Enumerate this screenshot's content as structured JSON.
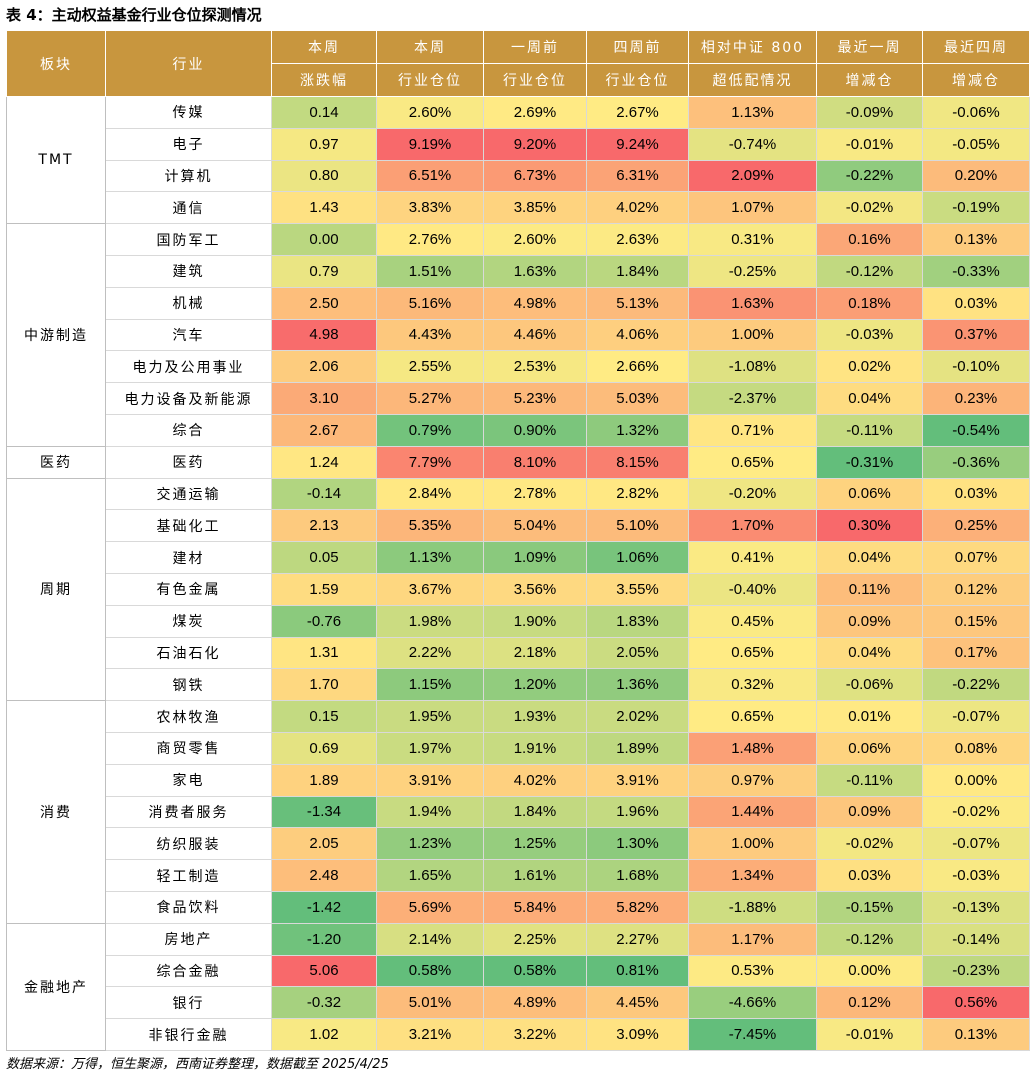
{
  "title": "表 4：主动权益基金行业仓位探测情况",
  "footer": "数据来源：万得，恒生聚源，西南证券整理，数据截至 2025/4/25",
  "headers": [
    [
      "板块"
    ],
    [
      "行业"
    ],
    [
      "本周",
      "涨跌幅"
    ],
    [
      "本周",
      "行业仓位"
    ],
    [
      "一周前",
      "行业仓位"
    ],
    [
      "四周前",
      "行业仓位"
    ],
    [
      "相对中证 800",
      "超低配情况"
    ],
    [
      "最近一周",
      "增减仓"
    ],
    [
      "最近四周",
      "增减仓"
    ]
  ],
  "sectors": [
    {
      "name": "TMT",
      "rows": [
        {
          "industry": "传媒",
          "values": [
            "0.14",
            "2.60%",
            "2.69%",
            "2.67%",
            "1.13%",
            "-0.09%",
            "-0.06%"
          ]
        },
        {
          "industry": "电子",
          "values": [
            "0.97",
            "9.19%",
            "9.20%",
            "9.24%",
            "-0.74%",
            "-0.01%",
            "-0.05%"
          ]
        },
        {
          "industry": "计算机",
          "values": [
            "0.80",
            "6.51%",
            "6.73%",
            "6.31%",
            "2.09%",
            "-0.22%",
            "0.20%"
          ]
        },
        {
          "industry": "通信",
          "values": [
            "1.43",
            "3.83%",
            "3.85%",
            "4.02%",
            "1.07%",
            "-0.02%",
            "-0.19%"
          ]
        }
      ]
    },
    {
      "name": "中游制造",
      "rows": [
        {
          "industry": "国防军工",
          "values": [
            "0.00",
            "2.76%",
            "2.60%",
            "2.63%",
            "0.31%",
            "0.16%",
            "0.13%"
          ]
        },
        {
          "industry": "建筑",
          "values": [
            "0.79",
            "1.51%",
            "1.63%",
            "1.84%",
            "-0.25%",
            "-0.12%",
            "-0.33%"
          ]
        },
        {
          "industry": "机械",
          "values": [
            "2.50",
            "5.16%",
            "4.98%",
            "5.13%",
            "1.63%",
            "0.18%",
            "0.03%"
          ]
        },
        {
          "industry": "汽车",
          "values": [
            "4.98",
            "4.43%",
            "4.46%",
            "4.06%",
            "1.00%",
            "-0.03%",
            "0.37%"
          ]
        },
        {
          "industry": "电力及公用事业",
          "values": [
            "2.06",
            "2.55%",
            "2.53%",
            "2.66%",
            "-1.08%",
            "0.02%",
            "-0.10%"
          ]
        },
        {
          "industry": "电力设备及新能源",
          "values": [
            "3.10",
            "5.27%",
            "5.23%",
            "5.03%",
            "-2.37%",
            "0.04%",
            "0.23%"
          ]
        },
        {
          "industry": "综合",
          "values": [
            "2.67",
            "0.79%",
            "0.90%",
            "1.32%",
            "0.71%",
            "-0.11%",
            "-0.54%"
          ]
        }
      ]
    },
    {
      "name": "医药",
      "rows": [
        {
          "industry": "医药",
          "values": [
            "1.24",
            "7.79%",
            "8.10%",
            "8.15%",
            "0.65%",
            "-0.31%",
            "-0.36%"
          ]
        }
      ]
    },
    {
      "name": "周期",
      "rows": [
        {
          "industry": "交通运输",
          "values": [
            "-0.14",
            "2.84%",
            "2.78%",
            "2.82%",
            "-0.20%",
            "0.06%",
            "0.03%"
          ]
        },
        {
          "industry": "基础化工",
          "values": [
            "2.13",
            "5.35%",
            "5.04%",
            "5.10%",
            "1.70%",
            "0.30%",
            "0.25%"
          ]
        },
        {
          "industry": "建材",
          "values": [
            "0.05",
            "1.13%",
            "1.09%",
            "1.06%",
            "0.41%",
            "0.04%",
            "0.07%"
          ]
        },
        {
          "industry": "有色金属",
          "values": [
            "1.59",
            "3.67%",
            "3.56%",
            "3.55%",
            "-0.40%",
            "0.11%",
            "0.12%"
          ]
        },
        {
          "industry": "煤炭",
          "values": [
            "-0.76",
            "1.98%",
            "1.90%",
            "1.83%",
            "0.45%",
            "0.09%",
            "0.15%"
          ]
        },
        {
          "industry": "石油石化",
          "values": [
            "1.31",
            "2.22%",
            "2.18%",
            "2.05%",
            "0.65%",
            "0.04%",
            "0.17%"
          ]
        },
        {
          "industry": "钢铁",
          "values": [
            "1.70",
            "1.15%",
            "1.20%",
            "1.36%",
            "0.32%",
            "-0.06%",
            "-0.22%"
          ]
        }
      ]
    },
    {
      "name": "消费",
      "rows": [
        {
          "industry": "农林牧渔",
          "values": [
            "0.15",
            "1.95%",
            "1.93%",
            "2.02%",
            "0.65%",
            "0.01%",
            "-0.07%"
          ]
        },
        {
          "industry": "商贸零售",
          "values": [
            "0.69",
            "1.97%",
            "1.91%",
            "1.89%",
            "1.48%",
            "0.06%",
            "0.08%"
          ]
        },
        {
          "industry": "家电",
          "values": [
            "1.89",
            "3.91%",
            "4.02%",
            "3.91%",
            "0.97%",
            "-0.11%",
            "0.00%"
          ]
        },
        {
          "industry": "消费者服务",
          "values": [
            "-1.34",
            "1.94%",
            "1.84%",
            "1.96%",
            "1.44%",
            "0.09%",
            "-0.02%"
          ]
        },
        {
          "industry": "纺织服装",
          "values": [
            "2.05",
            "1.23%",
            "1.25%",
            "1.30%",
            "1.00%",
            "-0.02%",
            "-0.07%"
          ]
        },
        {
          "industry": "轻工制造",
          "values": [
            "2.48",
            "1.65%",
            "1.61%",
            "1.68%",
            "1.34%",
            "0.03%",
            "-0.03%"
          ]
        },
        {
          "industry": "食品饮料",
          "values": [
            "-1.42",
            "5.69%",
            "5.84%",
            "5.82%",
            "-1.88%",
            "-0.15%",
            "-0.13%"
          ]
        }
      ]
    },
    {
      "name": "金融地产",
      "rows": [
        {
          "industry": "房地产",
          "values": [
            "-1.20",
            "2.14%",
            "2.25%",
            "2.27%",
            "1.17%",
            "-0.12%",
            "-0.14%"
          ]
        },
        {
          "industry": "综合金融",
          "values": [
            "5.06",
            "0.58%",
            "0.58%",
            "0.81%",
            "0.53%",
            "0.00%",
            "-0.23%"
          ]
        },
        {
          "industry": "银行",
          "values": [
            "-0.32",
            "5.01%",
            "4.89%",
            "4.45%",
            "-4.66%",
            "0.12%",
            "0.56%"
          ]
        },
        {
          "industry": "非银行金融",
          "values": [
            "1.02",
            "3.21%",
            "3.22%",
            "3.09%",
            "-7.45%",
            "-0.01%",
            "0.13%"
          ]
        }
      ]
    }
  ],
  "colors": {
    "header_bg": "#c8963e",
    "scale_low": "#63be7b",
    "scale_mid": "#ffeb84",
    "scale_high": "#f8696b"
  }
}
